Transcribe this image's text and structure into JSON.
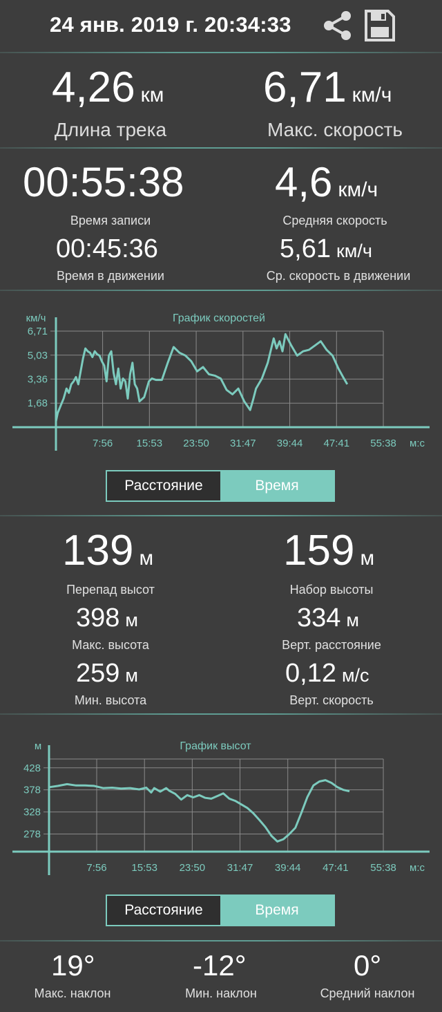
{
  "header": {
    "title": "24 янв. 2019 г. 20:34:33",
    "icons": [
      "share-icon",
      "save-icon"
    ]
  },
  "summary": {
    "distance_value": "4,26",
    "distance_unit": "км",
    "distance_label": "Длина трека",
    "maxspeed_value": "6,71",
    "maxspeed_unit": "км/ч",
    "maxspeed_label": "Макс. скорость"
  },
  "time": {
    "record_value": "00:55:38",
    "record_label": "Время записи",
    "moving_value": "00:45:36",
    "moving_label": "Время в движении",
    "avg_value": "4,6",
    "avg_unit": "км/ч",
    "avg_label": "Средняя скорость",
    "avgmove_value": "5,61",
    "avgmove_unit": "км/ч",
    "avgmove_label": "Ср. скорость в движении"
  },
  "toggle1": {
    "left": "Расстояние",
    "right": "Время",
    "selected": "Время"
  },
  "toggle2": {
    "left": "Расстояние",
    "right": "Время",
    "selected": "Время"
  },
  "elevation": {
    "diff_value": "139",
    "diff_unit": "м",
    "diff_label": "Перепад высот",
    "gain_value": "159",
    "gain_unit": "м",
    "gain_label": "Набор высоты",
    "max_value": "398",
    "max_unit": "м",
    "max_label": "Макс. высота",
    "vdist_value": "334",
    "vdist_unit": "м",
    "vdist_label": "Верт. расстояние",
    "min_value": "259",
    "min_unit": "м",
    "min_label": "Мин. высота",
    "vspeed_value": "0,12",
    "vspeed_unit": "м/с",
    "vspeed_label": "Верт. скорость"
  },
  "slope": {
    "max_value": "19°",
    "max_label": "Макс. наклон",
    "min_value": "-12°",
    "min_label": "Мин. наклон",
    "avg_value": "0°",
    "avg_label": "Средний наклон"
  },
  "colors": {
    "accent": "#7ccbbe",
    "background": "#3d3d3d"
  },
  "chart_data": [
    {
      "type": "line",
      "title": "График скоростей",
      "ylabel": "км/ч",
      "xlabel": "м:с",
      "yticks": [
        "1,68",
        "3,36",
        "5,03",
        "6,71"
      ],
      "xticks": [
        "7:56",
        "15:53",
        "23:50",
        "31:47",
        "39:44",
        "47:41",
        "55:38"
      ],
      "xlim_minutes": [
        0,
        55.63
      ],
      "ylim": [
        0,
        6.71
      ],
      "grid": true,
      "series": [
        {
          "x_minutes": [
            0,
            0.3,
            0.8,
            1.3,
            1.8,
            2.2,
            2.6,
            3.0,
            3.4,
            3.8,
            4.2,
            4.6,
            5.0,
            5.4,
            5.8,
            6.2,
            6.6,
            7.0,
            7.4,
            7.8,
            8.2,
            8.6,
            9.0,
            9.4,
            9.8,
            10.2,
            10.6,
            11.0,
            11.4,
            11.8,
            12.2,
            12.6,
            13.0,
            13.4,
            13.8,
            14.2,
            15.0,
            15.8,
            16.3,
            17.0,
            18.0,
            19.0,
            20.0,
            21.0,
            22.0,
            23.0,
            24.0,
            25.0,
            26.0,
            27.0,
            28.0,
            29.0,
            30.0,
            31.0,
            32.0,
            33.0,
            33.5,
            34.0,
            35.0,
            36.0,
            37.0,
            37.5,
            38.0,
            38.5,
            39.0,
            40.0,
            41.0,
            42.0,
            43.0,
            44.0,
            45.0,
            46.0,
            47.0,
            48.0,
            48.8,
            49.5
          ],
          "values": [
            0.4,
            1.0,
            1.5,
            2.0,
            2.7,
            2.4,
            3.0,
            3.2,
            3.5,
            3.0,
            3.9,
            4.8,
            5.5,
            5.3,
            5.2,
            4.9,
            5.3,
            5.1,
            5.0,
            4.6,
            4.3,
            3.2,
            5.0,
            5.3,
            3.8,
            3.0,
            4.1,
            2.7,
            3.4,
            3.2,
            2.0,
            3.7,
            4.5,
            3.0,
            2.7,
            1.8,
            2.1,
            3.2,
            3.4,
            3.3,
            3.3,
            4.5,
            5.6,
            5.2,
            5.0,
            4.6,
            3.9,
            4.2,
            3.7,
            3.6,
            3.4,
            2.6,
            2.3,
            2.7,
            1.8,
            1.2,
            1.9,
            2.7,
            3.4,
            4.5,
            6.2,
            5.5,
            6.0,
            5.3,
            6.5,
            5.7,
            5.0,
            5.3,
            5.4,
            5.7,
            6.0,
            5.4,
            5.0,
            4.1,
            3.5,
            3.0
          ]
        }
      ]
    },
    {
      "type": "line",
      "title": "График высот",
      "ylabel": "м",
      "xlabel": "м:с",
      "yticks": [
        "278",
        "328",
        "378",
        "428"
      ],
      "xticks": [
        "7:56",
        "15:53",
        "23:50",
        "31:47",
        "39:44",
        "47:41",
        "55:38"
      ],
      "xlim_minutes": [
        0,
        55.63
      ],
      "ylim": [
        238,
        448
      ],
      "grid": true,
      "series": [
        {
          "x_minutes": [
            0,
            1.5,
            3.0,
            4.5,
            6.0,
            7.5,
            9.0,
            10.5,
            12.0,
            13.5,
            15.0,
            16.2,
            17.0,
            17.5,
            18.5,
            19.5,
            20.0,
            21.0,
            22.0,
            23.0,
            24.0,
            25.0,
            26.0,
            27.0,
            28.0,
            29.0,
            30.0,
            31.0,
            32.0,
            33.0,
            34.0,
            35.0,
            36.0,
            37.0,
            38.0,
            39.0,
            40.0,
            41.0,
            42.0,
            43.0,
            44.0,
            45.0,
            46.0,
            47.0,
            48.0,
            49.0,
            50.0
          ],
          "values": [
            384,
            387,
            391,
            388,
            388,
            387,
            382,
            383,
            381,
            382,
            379,
            383,
            372,
            382,
            374,
            382,
            376,
            369,
            356,
            366,
            361,
            366,
            360,
            358,
            364,
            370,
            358,
            353,
            345,
            337,
            325,
            310,
            294,
            274,
            261,
            266,
            278,
            292,
            326,
            362,
            388,
            397,
            400,
            394,
            384,
            378,
            375
          ]
        }
      ]
    }
  ]
}
